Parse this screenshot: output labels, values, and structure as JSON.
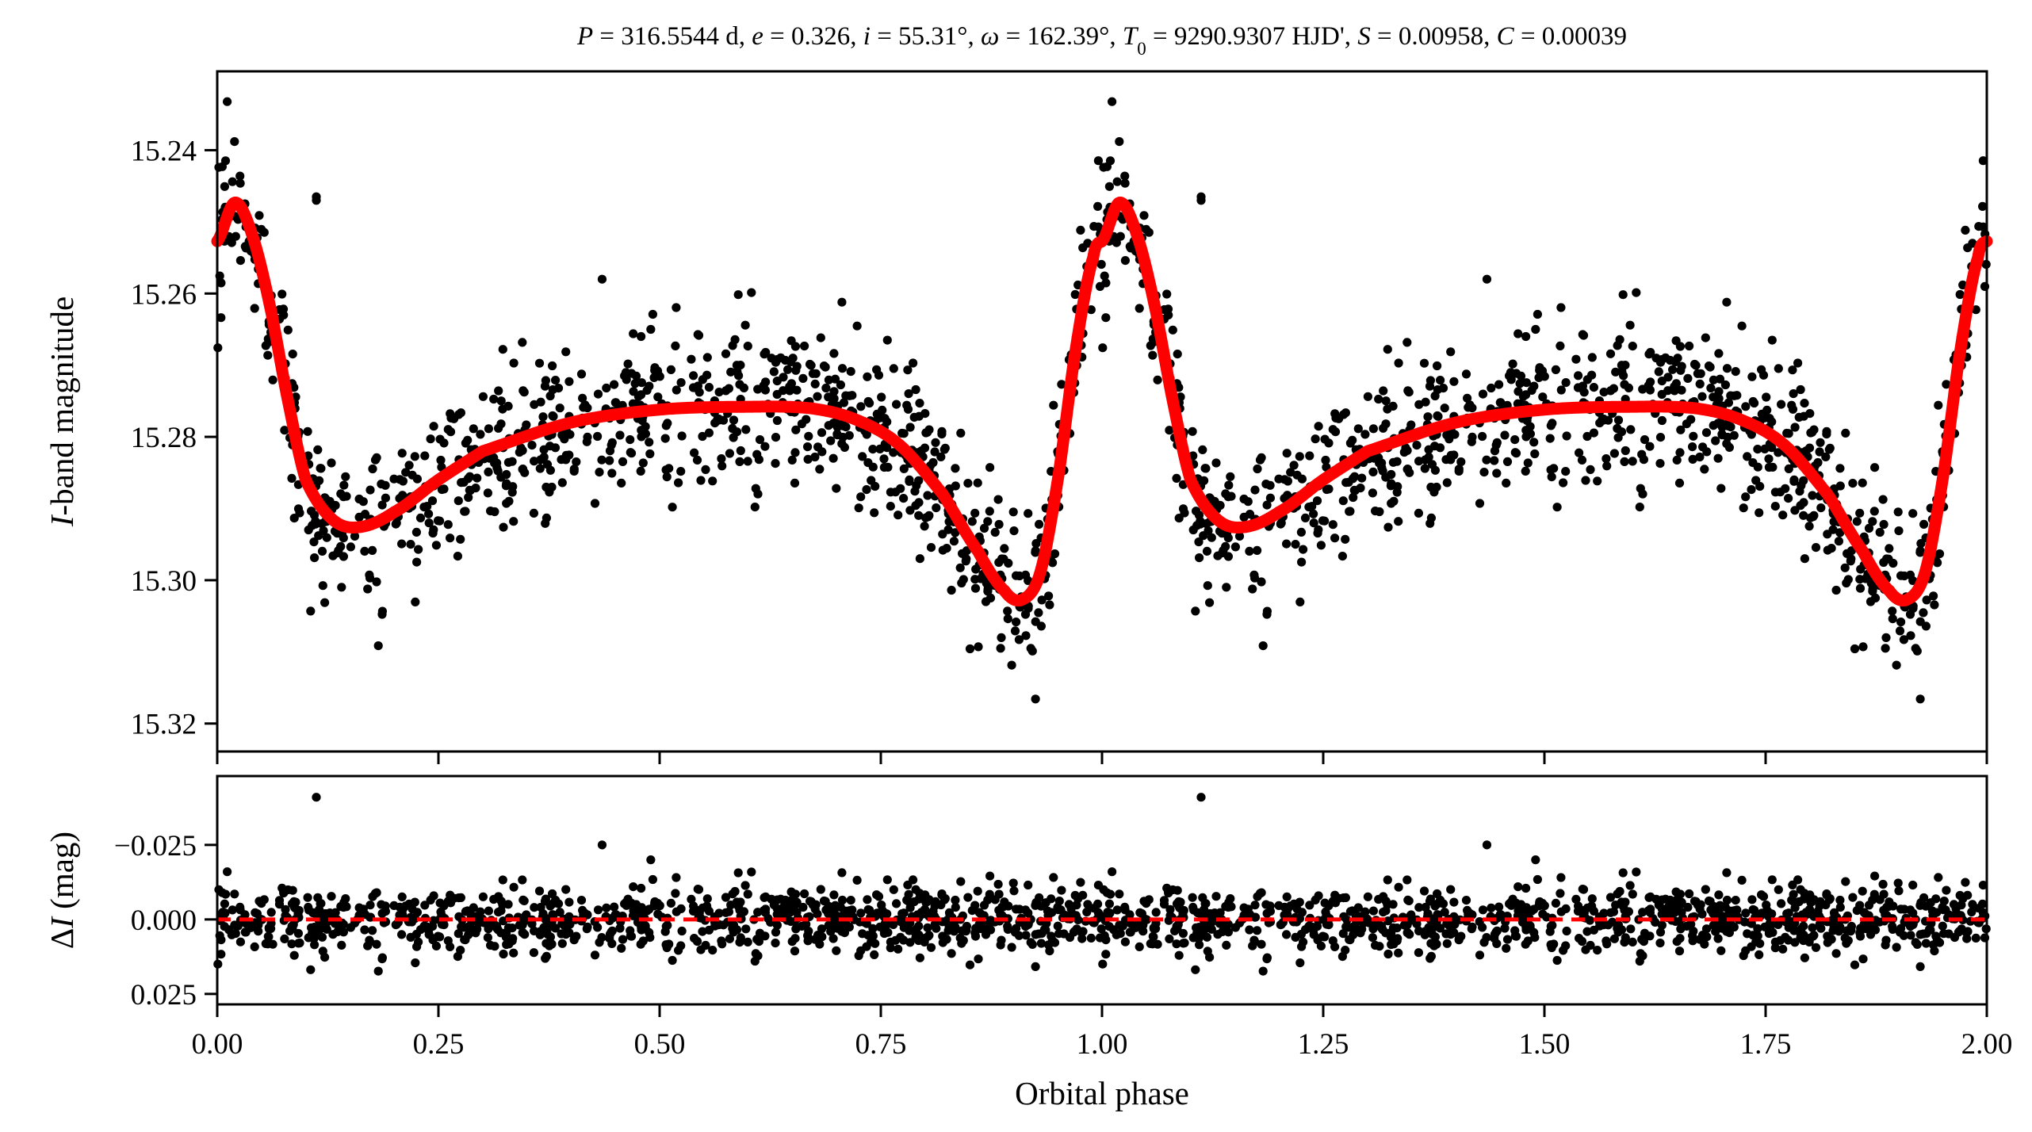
{
  "chart_data": [
    {
      "panel": "light-curve",
      "type": "scatter",
      "title_parts": [
        {
          "t": "P",
          "i": true
        },
        {
          "t": " = 316.5544 d, "
        },
        {
          "t": "e",
          "i": true
        },
        {
          "t": " = 0.326, "
        },
        {
          "t": "i",
          "i": true
        },
        {
          "t": " = 55.31°, "
        },
        {
          "t": "ω",
          "i": true
        },
        {
          "t": " = 162.39°, "
        },
        {
          "t": "T",
          "i": true
        },
        {
          "t": "0",
          "sub": true
        },
        {
          "t": " = 9290.9307 HJD', "
        },
        {
          "t": "S",
          "i": true
        },
        {
          "t": " = 0.00958, "
        },
        {
          "t": "C",
          "i": true
        },
        {
          "t": " = 0.00039"
        }
      ],
      "ylabel_italic": "I",
      "ylabel_rest": "-band magnitude",
      "ylim": [
        15.3239,
        15.229
      ],
      "yinverted": true,
      "yticks": [
        "15.24",
        "15.26",
        "15.28",
        "15.30",
        "15.32"
      ],
      "xlim": [
        0,
        2
      ],
      "series": [
        {
          "name": "observed",
          "color": "#000000",
          "marker": "circle",
          "points_per_cycle": 900,
          "scatter_sigma_mag": 0.0055,
          "outliers": [
            [
              0.112,
              15.247
            ],
            [
              0.435,
              15.258
            ],
            [
              0.49,
              15.265
            ],
            [
              0.112,
              15.2465
            ]
          ]
        },
        {
          "name": "model",
          "color": "#ff0000",
          "style": "solid",
          "knots": [
            [
              0.0,
              15.2527
            ],
            [
              0.02,
              15.2473
            ],
            [
              0.04,
              15.252
            ],
            [
              0.06,
              15.262
            ],
            [
              0.08,
              15.275
            ],
            [
              0.1,
              15.286
            ],
            [
              0.13,
              15.2915
            ],
            [
              0.16,
              15.2926
            ],
            [
              0.2,
              15.2905
            ],
            [
              0.25,
              15.286
            ],
            [
              0.3,
              15.282
            ],
            [
              0.4,
              15.278
            ],
            [
              0.5,
              15.2762
            ],
            [
              0.6,
              15.2758
            ],
            [
              0.67,
              15.276
            ],
            [
              0.72,
              15.2775
            ],
            [
              0.77,
              15.281
            ],
            [
              0.82,
              15.288
            ],
            [
              0.86,
              15.296
            ],
            [
              0.89,
              15.3015
            ],
            [
              0.91,
              15.3027
            ],
            [
              0.93,
              15.299
            ],
            [
              0.95,
              15.286
            ],
            [
              0.97,
              15.268
            ],
            [
              0.99,
              15.255
            ],
            [
              1.0,
              15.2527
            ]
          ]
        }
      ]
    },
    {
      "panel": "residuals",
      "type": "scatter",
      "ylabel_prefix": "Δ",
      "ylabel_italic": "I",
      "ylabel_rest": " (mag)",
      "xlabel": "Orbital phase",
      "xticks": [
        "0.00",
        "0.25",
        "0.50",
        "0.75",
        "1.00",
        "1.25",
        "1.50",
        "1.75",
        "2.00"
      ],
      "xlim": [
        0,
        2
      ],
      "ylim": [
        0.0285,
        -0.0481
      ],
      "yinverted": true,
      "yticks": [
        "−0.025",
        "0.000",
        "0.025"
      ],
      "ytick_values": [
        -0.025,
        0,
        0.025
      ],
      "series": [
        {
          "name": "residuals",
          "color": "#000000",
          "scatter_sigma_mag": 0.0055,
          "outliers": [
            [
              0.112,
              -0.041
            ],
            [
              0.435,
              -0.025
            ],
            [
              0.49,
              -0.02
            ],
            [
              1.112,
              -0.041
            ],
            [
              1.435,
              -0.025
            ],
            [
              1.49,
              -0.02
            ]
          ]
        },
        {
          "name": "zero-line",
          "color": "#ff0000",
          "style": "dashed",
          "value": 0
        }
      ]
    }
  ]
}
